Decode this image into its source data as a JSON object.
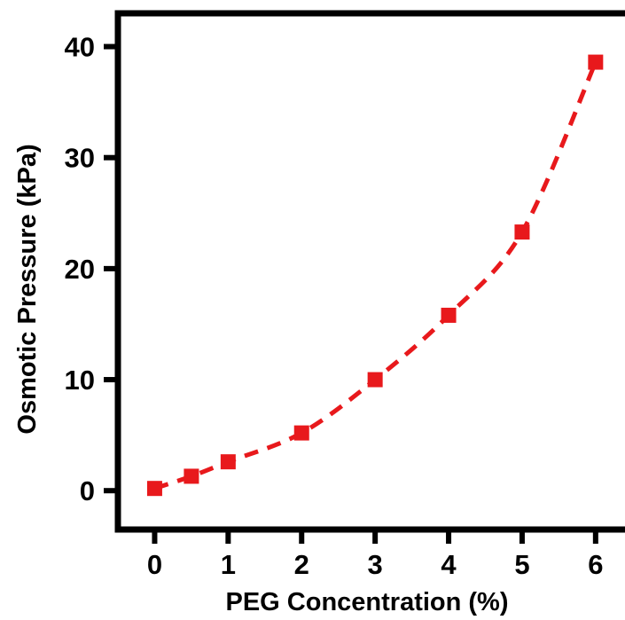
{
  "chart_data": {
    "type": "line",
    "title": "",
    "xlabel": "PEG Concentration (%)",
    "ylabel": "Osmotic Pressure (kPa)",
    "xlim": [
      -0.5,
      6.4
    ],
    "ylim": [
      -3.5,
      43
    ],
    "xticks": [
      0,
      1,
      2,
      3,
      4,
      5,
      6
    ],
    "yticks": [
      0,
      10,
      20,
      30,
      40
    ],
    "xtick_labels": [
      "0",
      "1",
      "2",
      "3",
      "4",
      "5",
      "6"
    ],
    "ytick_labels": [
      "0",
      "10",
      "20",
      "30",
      "40"
    ],
    "grid": false,
    "legend": "none",
    "series": [
      {
        "color": "#e8191c",
        "marker": "square",
        "line_style": "dashed",
        "x": [
          0,
          0.5,
          1,
          2,
          3,
          4,
          5,
          6
        ],
        "y": [
          0.2,
          1.3,
          2.6,
          5.2,
          10.0,
          15.8,
          23.3,
          38.6
        ]
      }
    ]
  }
}
